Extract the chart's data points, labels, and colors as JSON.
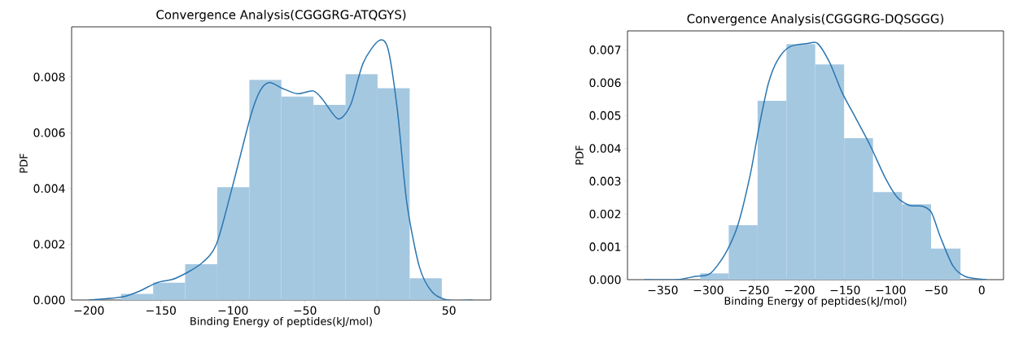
{
  "chart_data": [
    {
      "type": "histogram",
      "title": "Convergence Analysis(CGGGRG-ATQGYS)",
      "xlabel": "Binding Energy of peptides(kJ/mol)",
      "ylabel": "PDF",
      "series": [
        {
          "color": "#a5c8e1",
          "bins": [
            -177.7,
            -155.4,
            -133.2,
            -110.9,
            -88.6,
            -66.4,
            -44.1,
            -21.8,
            0.4,
            22.7,
            45.0
          ],
          "values": [
            0.00022,
            0.00062,
            0.00128,
            0.00405,
            0.0079,
            0.0073,
            0.007,
            0.0081,
            0.0076,
            0.00078
          ]
        },
        {
          "type": "line",
          "color": "#2a76b0",
          "x": [
            -200,
            -177.7,
            -165.7,
            -152.7,
            -139.7,
            -122.4,
            -111.5,
            -100.7,
            -87.7,
            -81.2,
            -74.7,
            -66,
            -55.2,
            -44.3,
            -37.8,
            -27,
            -18.3,
            -9.6,
            1.2,
            7.7,
            14.2,
            20.7,
            29.4,
            38.1,
            49,
            66.3
          ],
          "values": [
            0,
            0.0001,
            0.0003,
            0.00062,
            0.00078,
            0.00129,
            0.002,
            0.004,
            0.0066,
            0.0075,
            0.0078,
            0.0076,
            0.0074,
            0.0075,
            0.0072,
            0.0065,
            0.007,
            0.0085,
            0.0093,
            0.009,
            0.0068,
            0.0035,
            0.0012,
            0.0003,
            0,
            0
          ]
        }
      ],
      "xlim": [
        -212,
        79
      ],
      "ylim": [
        0,
        0.0098
      ],
      "xticks": [
        {
          "value": -200,
          "label": "−200"
        },
        {
          "value": -150,
          "label": "−150"
        },
        {
          "value": -100,
          "label": "−100"
        },
        {
          "value": -50,
          "label": "−50"
        },
        0,
        50
      ],
      "yticks": [
        {
          "value": 0,
          "label": "0.000"
        },
        {
          "value": 0.002,
          "label": "0.002"
        },
        {
          "value": 0.004,
          "label": "0.004"
        },
        {
          "value": 0.006,
          "label": "0.006"
        },
        {
          "value": 0.008,
          "label": "0.008"
        }
      ]
    },
    {
      "type": "histogram",
      "title": "Convergence Analysis(CGGGRG-DQSGGG)",
      "xlabel": "Binding Energy of peptides(kJ/mol)",
      "ylabel": "PDF",
      "series": [
        {
          "color": "#a5c8e1",
          "bins": [
            -308.9,
            -277.6,
            -245.9,
            -214.3,
            -182.7,
            -151.0,
            -119.3,
            -87.5,
            -55.6,
            -23.3
          ],
          "values": [
            0.00019,
            0.00166,
            0.00545,
            0.00718,
            0.00656,
            0.00431,
            0.00267,
            0.0023,
            0.00095
          ]
        },
        {
          "type": "line",
          "color": "#2a76b0",
          "x": [
            -370,
            -334.8,
            -314.6,
            -297.8,
            -281,
            -267.5,
            -254,
            -244,
            -233.9,
            -223.8,
            -210.4,
            -190.2,
            -180.1,
            -166.6,
            -153.2,
            -139.7,
            -122.6,
            -105.8,
            -92.4,
            -78.9,
            -65.4,
            -55.3,
            -45.2,
            -31.8,
            -18.3,
            5.4
          ],
          "values": [
            0,
            0,
            0.0001,
            0.00019,
            0.00081,
            0.00167,
            0.0032,
            0.0047,
            0.006,
            0.0067,
            0.0071,
            0.0072,
            0.0072,
            0.0066,
            0.0057,
            0.005,
            0.0041,
            0.0031,
            0.0025,
            0.00226,
            0.00224,
            0.00205,
            0.00129,
            0.00043,
            0.0001,
            0
          ]
        }
      ],
      "xlim": [
        -388.7,
        23.9
      ],
      "ylim": [
        0,
        0.00758
      ],
      "xticks": [
        {
          "value": -350,
          "label": "−350"
        },
        {
          "value": -300,
          "label": "−300"
        },
        {
          "value": -250,
          "label": "−250"
        },
        {
          "value": -200,
          "label": "−200"
        },
        {
          "value": -150,
          "label": "−150"
        },
        {
          "value": -100,
          "label": "−100"
        },
        {
          "value": -50,
          "label": "−50"
        },
        0
      ],
      "yticks": [
        {
          "value": 0,
          "label": "0.000"
        },
        {
          "value": 0.001,
          "label": "0.001"
        },
        {
          "value": 0.002,
          "label": "0.002"
        },
        {
          "value": 0.003,
          "label": "0.003"
        },
        {
          "value": 0.004,
          "label": "0.004"
        },
        {
          "value": 0.005,
          "label": "0.005"
        },
        {
          "value": 0.006,
          "label": "0.006"
        },
        {
          "value": 0.007,
          "label": "0.007"
        }
      ]
    }
  ]
}
